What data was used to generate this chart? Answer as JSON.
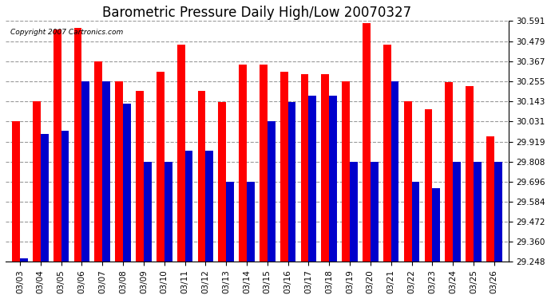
{
  "title": "Barometric Pressure Daily High/Low 20070327",
  "copyright": "Copyright 2007 Cartronics.com",
  "dates": [
    "03/03",
    "03/04",
    "03/05",
    "03/06",
    "03/07",
    "03/08",
    "03/09",
    "03/10",
    "03/11",
    "03/12",
    "03/13",
    "03/14",
    "03/15",
    "03/16",
    "03/17",
    "03/18",
    "03/19",
    "03/20",
    "03/21",
    "03/22",
    "03/23",
    "03/24",
    "03/25",
    "03/26"
  ],
  "highs": [
    30.031,
    30.143,
    30.543,
    30.555,
    30.367,
    30.255,
    30.2,
    30.31,
    30.46,
    30.2,
    30.14,
    30.35,
    30.35,
    30.31,
    30.295,
    30.295,
    30.255,
    30.579,
    30.46,
    30.143,
    30.1,
    30.25,
    30.23,
    29.95
  ],
  "lows": [
    29.27,
    29.96,
    29.98,
    30.255,
    30.255,
    30.13,
    29.808,
    29.808,
    29.87,
    29.87,
    29.696,
    29.696,
    30.031,
    30.14,
    30.175,
    30.175,
    29.808,
    29.808,
    30.255,
    29.696,
    29.66,
    29.808,
    29.808,
    29.808
  ],
  "high_color": "#ff0000",
  "low_color": "#0000cc",
  "ylim_min": 29.248,
  "ylim_max": 30.591,
  "yticks": [
    29.248,
    29.36,
    29.472,
    29.584,
    29.696,
    29.808,
    29.919,
    30.031,
    30.143,
    30.255,
    30.367,
    30.479,
    30.591
  ],
  "background_color": "#ffffff",
  "plot_bg_color": "#ffffff",
  "grid_color": "#999999",
  "title_fontsize": 12,
  "tick_fontsize": 7.5,
  "bar_width": 0.38
}
